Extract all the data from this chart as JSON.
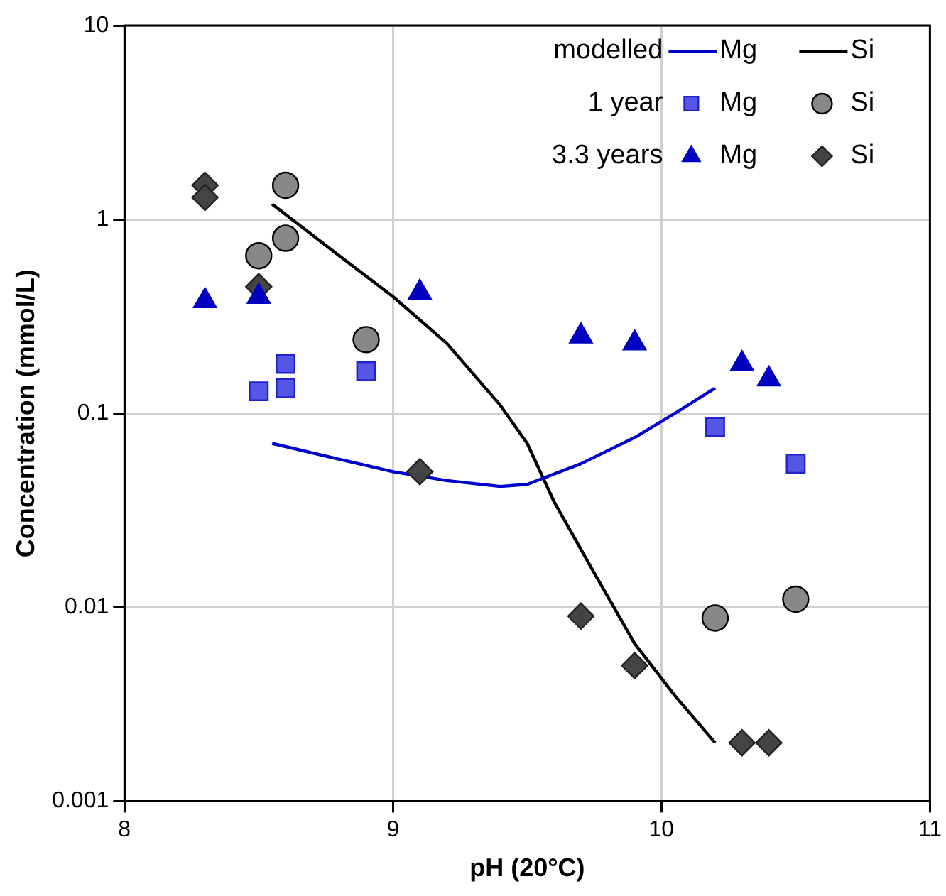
{
  "chart_data": {
    "type": "scatter",
    "xlabel": "pH (20°C)",
    "ylabel": "Concentration (mmol/L)",
    "log": "y",
    "xlim": [
      8,
      11
    ],
    "xticks": [
      8,
      9,
      10,
      11
    ],
    "ylim": [
      0.001,
      10
    ],
    "yticks": [
      0.001,
      0.01,
      0.1,
      1,
      10
    ],
    "grid": true,
    "legend": "top right",
    "annotations": [
      "modelled",
      "1 year",
      "3.3 years"
    ],
    "series": [
      {
        "name": "Mg",
        "type": "line",
        "marker": "none",
        "color": "#0000cc",
        "x": [
          8.55,
          8.8,
          9.0,
          9.2,
          9.4,
          9.5,
          9.7,
          9.9,
          10.05,
          10.2
        ],
        "values": [
          0.07,
          0.058,
          0.05,
          0.045,
          0.042,
          0.043,
          0.055,
          0.075,
          0.1,
          0.135
        ]
      },
      {
        "name": "Si",
        "type": "line",
        "marker": "none",
        "color": "#000000",
        "x": [
          8.55,
          8.8,
          9.0,
          9.2,
          9.4,
          9.5,
          9.6,
          9.75,
          9.9,
          10.05,
          10.2
        ],
        "values": [
          1.2,
          0.65,
          0.4,
          0.23,
          0.11,
          0.07,
          0.035,
          0.015,
          0.0065,
          0.0035,
          0.002
        ]
      },
      {
        "name": "Mg",
        "marker": "square",
        "color": "#5555e6",
        "x": [
          8.5,
          8.6,
          8.6,
          8.9,
          10.2,
          10.5
        ],
        "values": [
          0.13,
          0.135,
          0.18,
          0.165,
          0.085,
          0.055
        ]
      },
      {
        "name": "Si",
        "marker": "circle",
        "color": "#888888",
        "x": [
          8.5,
          8.6,
          8.6,
          8.9,
          10.2,
          10.5
        ],
        "values": [
          0.65,
          0.8,
          1.5,
          0.24,
          0.0088,
          0.011
        ]
      },
      {
        "name": "Mg",
        "marker": "triangle",
        "color": "#0000c0",
        "x": [
          8.3,
          8.5,
          9.1,
          9.7,
          9.9,
          10.3,
          10.4
        ],
        "values": [
          0.38,
          0.4,
          0.42,
          0.25,
          0.23,
          0.18,
          0.15
        ]
      },
      {
        "name": "Si",
        "marker": "diamond",
        "color": "#444444",
        "x": [
          8.3,
          8.3,
          8.5,
          9.1,
          9.7,
          9.9,
          10.3,
          10.4
        ],
        "values": [
          1.5,
          1.3,
          0.45,
          0.05,
          0.009,
          0.005,
          0.002,
          0.002
        ]
      }
    ]
  }
}
